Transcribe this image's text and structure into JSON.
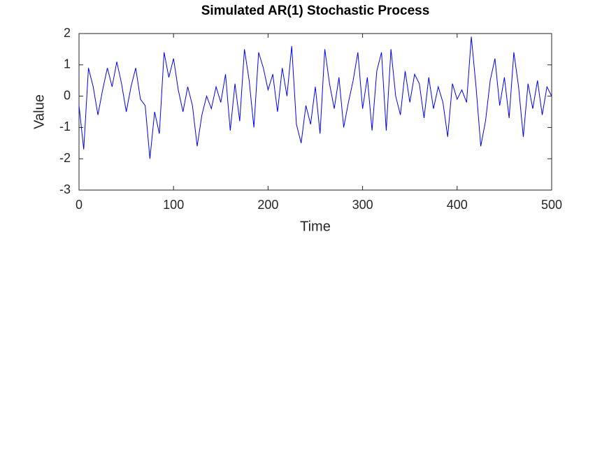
{
  "chart_data": {
    "type": "line",
    "title": "Simulated AR(1) Stochastic Process",
    "x_label": "Time",
    "y_label": "Value",
    "x": [
      0,
      5,
      10,
      15,
      20,
      25,
      30,
      35,
      40,
      45,
      50,
      55,
      60,
      65,
      70,
      75,
      80,
      85,
      90,
      95,
      100,
      105,
      110,
      115,
      120,
      125,
      130,
      135,
      140,
      145,
      150,
      155,
      160,
      165,
      170,
      175,
      180,
      185,
      190,
      195,
      200,
      205,
      210,
      215,
      220,
      225,
      230,
      235,
      240,
      245,
      250,
      255,
      260,
      265,
      270,
      275,
      280,
      285,
      290,
      295,
      300,
      305,
      310,
      315,
      320,
      325,
      330,
      335,
      340,
      345,
      350,
      355,
      360,
      365,
      370,
      375,
      380,
      385,
      390,
      395,
      400,
      405,
      410,
      415,
      420,
      425,
      430,
      435,
      440,
      445,
      450,
      455,
      460,
      465,
      470,
      475,
      480,
      485,
      490,
      495,
      500
    ],
    "series": [
      {
        "name": "AR(1)",
        "color": "#0000ff",
        "values": [
          -0.3,
          -1.7,
          0.9,
          0.3,
          -0.6,
          0.2,
          0.9,
          0.3,
          1.1,
          0.4,
          -0.5,
          0.3,
          0.9,
          -0.1,
          -0.3,
          -2.0,
          -0.5,
          -1.2,
          1.4,
          0.6,
          1.2,
          0.2,
          -0.5,
          0.3,
          -0.3,
          -1.6,
          -0.6,
          0.0,
          -0.4,
          0.3,
          -0.2,
          0.7,
          -1.1,
          0.4,
          -0.8,
          1.5,
          0.5,
          -1.0,
          1.4,
          0.9,
          0.2,
          0.7,
          -0.5,
          0.9,
          0.0,
          1.6,
          -0.9,
          -1.5,
          -0.3,
          -0.9,
          0.3,
          -1.2,
          1.5,
          0.4,
          -0.4,
          0.6,
          -1.0,
          -0.2,
          0.5,
          1.4,
          -0.4,
          0.6,
          -1.1,
          0.8,
          1.4,
          -1.1,
          1.5,
          0.0,
          -0.6,
          0.8,
          -0.2,
          0.7,
          0.4,
          -0.7,
          0.6,
          -0.4,
          0.3,
          -0.2,
          -1.3,
          0.4,
          -0.1,
          0.2,
          -0.2,
          1.9,
          0.3,
          -1.6,
          -0.8,
          0.5,
          1.2,
          -0.3,
          0.6,
          -0.7,
          1.4,
          0.3,
          -1.3,
          0.4,
          -0.4,
          0.5,
          -0.6,
          0.3,
          0.0
        ]
      }
    ],
    "xlim": [
      0,
      500
    ],
    "xticks": [
      0,
      100,
      200,
      300,
      400,
      500
    ],
    "ylim": [
      -3,
      2
    ],
    "yticks": [
      -3,
      -2,
      -1,
      0,
      1,
      2
    ],
    "grid": false
  }
}
